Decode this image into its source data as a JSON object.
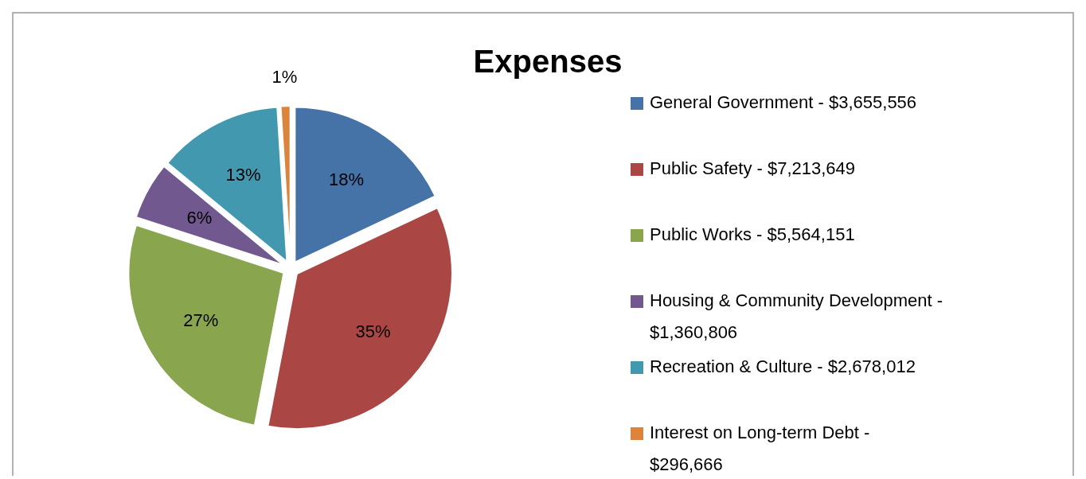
{
  "chart_data": {
    "type": "pie",
    "title": "Expenses",
    "categories": [
      "General Government - $3,655,556",
      "Public Safety - $7,213,649",
      "Public Works - $5,564,151",
      "Housing & Community Development - $1,360,806",
      "Recreation & Culture - $2,678,012",
      "Interest on Long-term Debt - $296,666"
    ],
    "values": [
      18,
      35,
      27,
      6,
      13,
      1
    ],
    "colors": [
      "#4572a7",
      "#aa4643",
      "#89a54e",
      "#71588f",
      "#4198af",
      "#db843d"
    ],
    "value_labels": [
      "18%",
      "35%",
      "27%",
      "6%",
      "13%",
      "1%"
    ],
    "legend": "right"
  }
}
